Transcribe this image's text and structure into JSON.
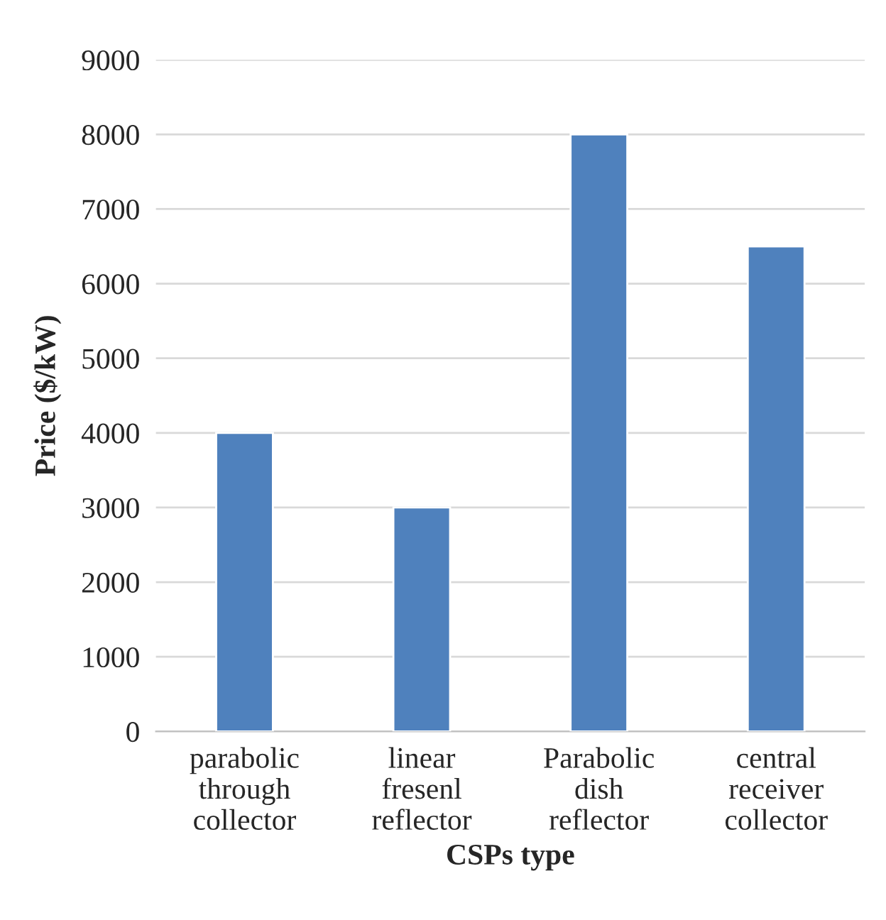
{
  "chart_data": {
    "type": "bar",
    "xlabel": "CSPs type",
    "ylabel": "Price ($/kW)",
    "categories": [
      "parabolic\nthrough\ncollector",
      "linear\nfresenl\nreflector",
      "Parabolic\ndish\nreflector",
      "central\nreceiver\ncollector"
    ],
    "values": [
      4000,
      3000,
      8000,
      6500
    ],
    "color": "#4f81bd",
    "ylim": [
      0,
      9000
    ],
    "yticks": [
      0,
      1000,
      2000,
      3000,
      4000,
      5000,
      6000,
      7000,
      8000,
      9000
    ],
    "grid": "y"
  }
}
